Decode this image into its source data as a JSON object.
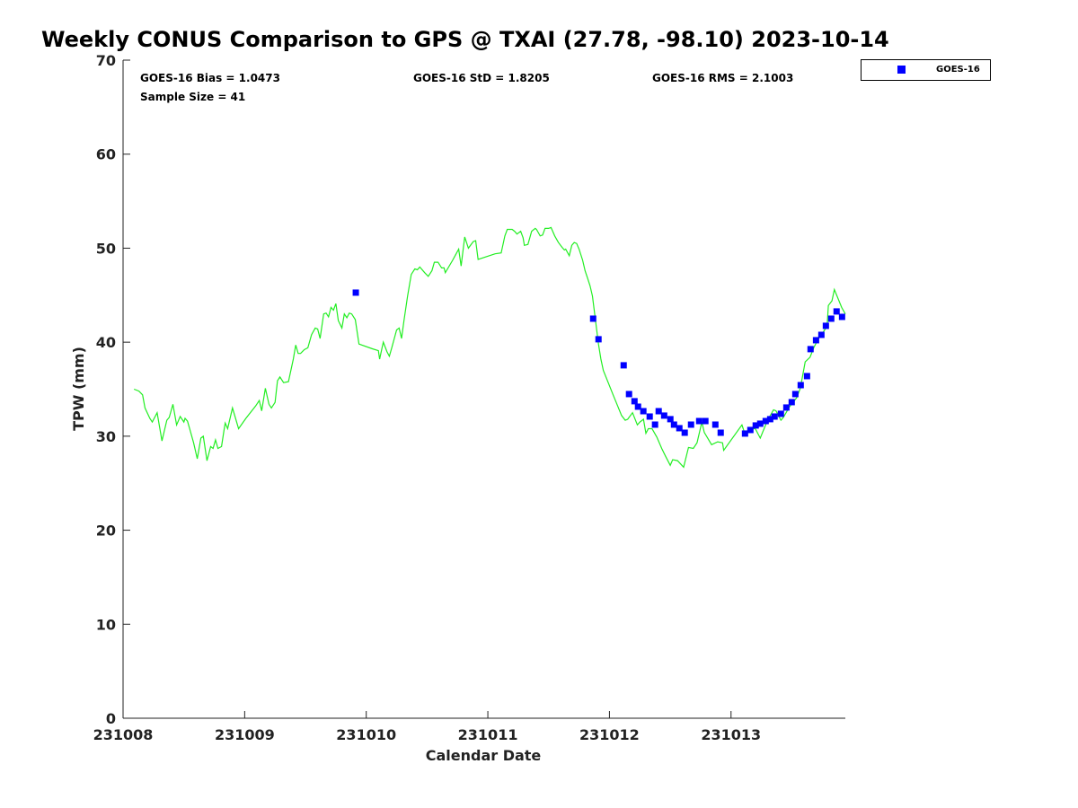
{
  "chart_data": {
    "type": "line",
    "title": "Weekly CONUS Comparison to GPS @ TXAI (27.78, -98.10) 2023-10-14",
    "xlabel": "Calendar Date",
    "ylabel": "TPW (mm)",
    "x_units": "days since 231008",
    "xlim": [
      0,
      5.94
    ],
    "ylim": [
      0,
      70
    ],
    "xticks": [
      0,
      1,
      2,
      3,
      4,
      5
    ],
    "xtick_labels": [
      "231008",
      "231009",
      "231010",
      "231011",
      "231012",
      "231013"
    ],
    "yticks": [
      0,
      10,
      20,
      30,
      40,
      50,
      60,
      70
    ],
    "ytick_labels": [
      "0",
      "10",
      "20",
      "30",
      "40",
      "50",
      "60",
      "70"
    ],
    "grid": false,
    "legend": {
      "placement": "top-right",
      "entries": [
        "GOES-16"
      ]
    },
    "stats": {
      "bias": "GOES-16 Bias = 1.0473",
      "std": "GOES-16 StD = 1.8205",
      "rms": "GOES-16 RMS = 2.1003",
      "sample": "Sample Size = 41"
    },
    "colors": {
      "gps_line": "#22ee22",
      "goes16": "#0000ff"
    },
    "series": [
      {
        "name": "GPS",
        "kind": "line",
        "x": [
          0.09,
          0.13,
          0.16,
          0.18,
          0.22,
          0.24,
          0.28,
          0.32,
          0.36,
          0.38,
          0.41,
          0.44,
          0.47,
          0.5,
          0.51,
          0.53,
          0.55,
          0.58,
          0.61,
          0.64,
          0.66,
          0.69,
          0.72,
          0.74,
          0.76,
          0.78,
          0.81,
          0.83,
          0.84,
          0.86,
          0.9,
          0.95,
          1.01,
          1.09,
          1.12,
          1.14,
          1.17,
          1.2,
          1.22,
          1.25,
          1.27,
          1.29,
          1.32,
          1.36,
          1.4,
          1.42,
          1.44,
          1.46,
          1.49,
          1.52,
          1.55,
          1.58,
          1.6,
          1.62,
          1.65,
          1.67,
          1.69,
          1.71,
          1.73,
          1.75,
          1.77,
          1.8,
          1.82,
          1.84,
          1.86,
          1.88,
          1.91,
          1.94,
          2.05,
          2.1,
          2.11,
          2.13,
          2.14,
          2.17,
          2.19,
          2.21,
          2.25,
          2.27,
          2.29,
          2.31,
          2.34,
          2.37,
          2.4,
          2.42,
          2.44,
          2.48,
          2.51,
          2.54,
          2.56,
          2.59,
          2.62,
          2.64,
          2.65,
          2.71,
          2.76,
          2.78,
          2.81,
          2.84,
          2.88,
          2.9,
          2.92,
          3.06,
          3.11,
          3.14,
          3.16,
          3.2,
          3.22,
          3.24,
          3.27,
          3.29,
          3.3,
          3.33,
          3.36,
          3.39,
          3.4,
          3.43,
          3.45,
          3.47,
          3.5,
          3.52,
          3.55,
          3.58,
          3.61,
          3.63,
          3.64,
          3.67,
          3.69,
          3.71,
          3.73,
          3.75,
          3.78,
          3.8,
          3.82,
          3.84,
          3.86,
          3.9,
          3.91,
          3.93,
          3.95,
          4.03,
          4.1,
          4.13,
          4.15,
          4.19,
          4.23,
          4.25,
          4.28,
          4.3,
          4.32,
          4.35,
          4.39,
          4.43,
          4.46,
          4.5,
          4.52,
          4.56,
          4.61,
          4.65,
          4.69,
          4.72,
          4.76,
          4.78,
          4.84,
          4.89,
          4.93,
          4.94,
          5.09,
          5.11,
          5.17,
          5.2,
          5.24,
          5.3,
          5.35,
          5.37,
          5.41,
          5.43,
          5.48,
          5.54,
          5.57,
          5.61,
          5.65,
          5.68,
          5.72,
          5.76,
          5.79,
          5.8,
          5.83,
          5.85,
          5.91,
          5.94
        ],
        "y": [
          35.0,
          34.8,
          34.4,
          33.0,
          31.9,
          31.5,
          32.5,
          29.5,
          31.7,
          32.0,
          33.4,
          31.2,
          32.1,
          31.5,
          31.9,
          31.6,
          30.7,
          29.3,
          27.6,
          29.8,
          30.0,
          27.4,
          28.9,
          28.7,
          29.6,
          28.7,
          28.9,
          30.6,
          31.4,
          30.8,
          33.0,
          30.8,
          31.9,
          33.2,
          33.8,
          32.7,
          35.1,
          33.4,
          33.0,
          33.6,
          35.9,
          36.3,
          35.7,
          35.8,
          38.2,
          39.7,
          38.8,
          38.8,
          39.2,
          39.4,
          40.8,
          41.5,
          41.4,
          40.4,
          43.0,
          43.1,
          42.7,
          43.7,
          43.4,
          44.1,
          42.3,
          41.5,
          43.0,
          42.6,
          43.1,
          43.0,
          42.4,
          39.8,
          39.3,
          39.1,
          38.2,
          39.4,
          40.0,
          39.0,
          38.5,
          39.4,
          41.3,
          41.5,
          40.4,
          42.3,
          44.9,
          47.2,
          47.8,
          47.7,
          48.0,
          47.4,
          47.0,
          47.6,
          48.5,
          48.5,
          47.9,
          47.9,
          47.4,
          48.7,
          49.9,
          48.1,
          51.2,
          50.0,
          50.7,
          50.8,
          48.8,
          49.4,
          49.5,
          51.3,
          52.0,
          52.0,
          51.8,
          51.5,
          51.8,
          51.1,
          50.3,
          50.4,
          51.8,
          52.1,
          52.0,
          51.3,
          51.4,
          52.1,
          52.1,
          52.2,
          51.3,
          50.6,
          50.1,
          49.8,
          49.9,
          49.2,
          50.3,
          50.6,
          50.5,
          49.9,
          48.7,
          47.6,
          46.8,
          46.0,
          44.9,
          40.8,
          39.8,
          38.2,
          37.0,
          34.4,
          32.2,
          31.7,
          31.8,
          32.5,
          31.2,
          31.5,
          31.8,
          30.3,
          30.8,
          30.8,
          29.9,
          28.7,
          27.9,
          26.9,
          27.5,
          27.4,
          26.7,
          28.8,
          28.7,
          29.3,
          31.5,
          30.4,
          29.1,
          29.4,
          29.3,
          28.5,
          31.2,
          30.4,
          30.8,
          30.8,
          29.8,
          31.7,
          32.8,
          32.7,
          31.7,
          32.0,
          33.1,
          34.1,
          35.1,
          37.9,
          38.4,
          39.4,
          40.4,
          41.1,
          41.7,
          43.9,
          44.4,
          45.6,
          43.7,
          43.0
        ]
      },
      {
        "name": "GOES-16",
        "kind": "scatter",
        "x": [
          1.914,
          3.866,
          3.91,
          4.117,
          4.161,
          4.206,
          4.235,
          4.279,
          4.331,
          4.375,
          4.405,
          4.45,
          4.501,
          4.531,
          4.575,
          4.619,
          4.671,
          4.738,
          4.789,
          4.871,
          4.915,
          5.115,
          5.159,
          5.203,
          5.24,
          5.285,
          5.322,
          5.358,
          5.41,
          5.455,
          5.499,
          5.529,
          5.573,
          5.625,
          5.654,
          5.699,
          5.743,
          5.78,
          5.824,
          5.868,
          5.913
        ],
        "y": [
          45.27,
          42.5,
          40.31,
          37.54,
          34.48,
          33.72,
          33.14,
          32.66,
          32.09,
          31.23,
          32.66,
          32.19,
          31.81,
          31.23,
          30.85,
          30.37,
          31.23,
          31.61,
          31.61,
          31.23,
          30.37,
          30.28,
          30.66,
          31.14,
          31.33,
          31.61,
          31.81,
          32.09,
          32.38,
          33.05,
          33.62,
          34.48,
          35.43,
          36.39,
          39.26,
          40.21,
          40.78,
          41.74,
          42.5,
          43.27,
          42.69
        ]
      }
    ]
  }
}
